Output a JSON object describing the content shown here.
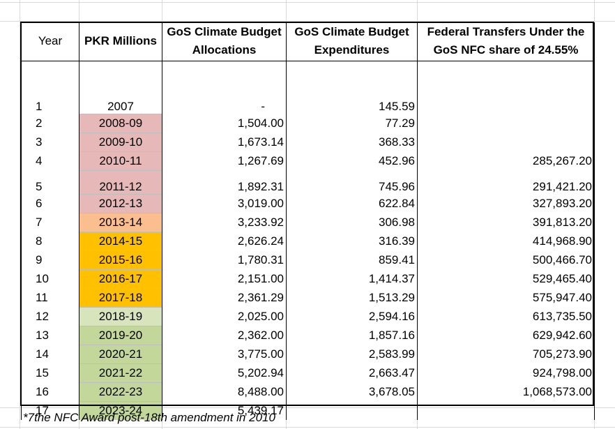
{
  "header": {
    "col_year": "Year",
    "col_period": "PKR Millions",
    "col_alloc": [
      "GoS Climate Budget",
      "Allocations"
    ],
    "col_exp": [
      "GoS Climate Budget",
      "Expenditures"
    ],
    "col_fed": [
      "Federal Transfers Under the",
      "GoS NFC share of 24.55%"
    ]
  },
  "rows": [
    {
      "year": "1",
      "period": "2007",
      "alloc": "-",
      "exp": "145.59",
      "fed": "",
      "color": "#ffffff"
    },
    {
      "year": "2",
      "period": "2008-09",
      "alloc": "1,504.00",
      "exp": "77.29",
      "fed": "",
      "color": "#e6b8b7"
    },
    {
      "year": "3",
      "period": "2009-10",
      "alloc": "1,673.14",
      "exp": "368.33",
      "fed": "",
      "color": "#e6b8b7"
    },
    {
      "year": "4",
      "period": "2010-11",
      "alloc": "1,267.69",
      "exp": "452.96",
      "fed": "285,267.20",
      "color": "#e6b8b7"
    },
    {
      "year": "5",
      "period": "2011-12",
      "alloc": "1,892.31",
      "exp": "745.96",
      "fed": "291,421.20",
      "color": "#e6b8b7"
    },
    {
      "year": "6",
      "period": "2012-13",
      "alloc": "3,019.00",
      "exp": "622.84",
      "fed": "327,893.20",
      "color": "#e6b8b7"
    },
    {
      "year": "7",
      "period": "2013-14",
      "alloc": "3,233.92",
      "exp": "306.98",
      "fed": "391,813.20",
      "color": "#fbbf8f"
    },
    {
      "year": "8",
      "period": "2014-15",
      "alloc": "2,626.24",
      "exp": "316.39",
      "fed": "414,968.90",
      "color": "#ffc000"
    },
    {
      "year": "9",
      "period": "2015-16",
      "alloc": "1,780.31",
      "exp": "859.41",
      "fed": "500,466.70",
      "color": "#ffc000"
    },
    {
      "year": "10",
      "period": "2016-17",
      "alloc": "2,151.00",
      "exp": "1,414.37",
      "fed": "529,465.40",
      "color": "#ffc000"
    },
    {
      "year": "11",
      "period": "2017-18",
      "alloc": "2,361.29",
      "exp": "1,513.29",
      "fed": "575,947.40",
      "color": "#ffc000"
    },
    {
      "year": "12",
      "period": "2018-19",
      "alloc": "2,025.00",
      "exp": "2,594.16",
      "fed": "613,735.50",
      "color": "#d8e4bc"
    },
    {
      "year": "13",
      "period": "2019-20",
      "alloc": "2,362.00",
      "exp": "1,857.16",
      "fed": "629,942.60",
      "color": "#c4d79b"
    },
    {
      "year": "14",
      "period": "2020-21",
      "alloc": "3,775.00",
      "exp": "2,583.99",
      "fed": "705,273.90",
      "color": "#c4d79b"
    },
    {
      "year": "15",
      "period": "2021-22",
      "alloc": "5,202.94",
      "exp": "2,663.47",
      "fed": "924,798.00",
      "color": "#c4d79b"
    },
    {
      "year": "16",
      "period": "2022-23",
      "alloc": "8,488.00",
      "exp": "3,678.05",
      "fed": "1,068,573.00",
      "color": "#c4d79b"
    },
    {
      "year": "17",
      "period": "2023-24",
      "alloc": "5,439.17",
      "exp": "",
      "fed": "",
      "color": "#c4d79b"
    }
  ],
  "footnote": "*7the NFC Award post-18th amendment in 2010"
}
